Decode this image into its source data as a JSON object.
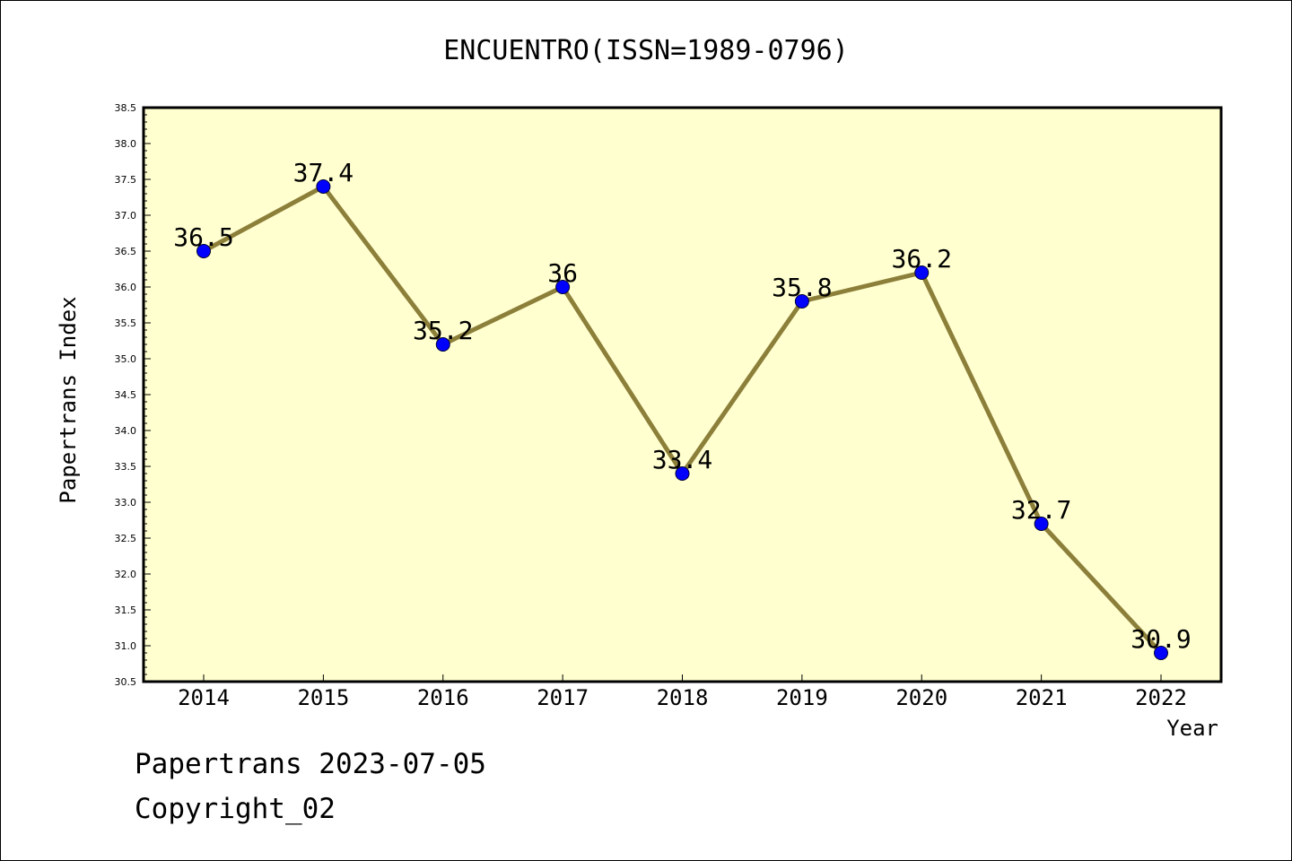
{
  "chart_data": {
    "type": "line",
    "title": "ENCUENTRO(ISSN=1989-0796)",
    "xlabel": "Year",
    "ylabel": "Papertrans Index",
    "x": [
      "2014",
      "2015",
      "2016",
      "2017",
      "2018",
      "2019",
      "2020",
      "2021",
      "2022"
    ],
    "series": [
      {
        "values": [
          36.5,
          37.4,
          35.2,
          36.0,
          33.4,
          35.8,
          36.2,
          32.7,
          30.9
        ],
        "labels": [
          "36.5",
          "37.4",
          "35.2",
          "36",
          "33.4",
          "35.8",
          "36.2",
          "32.7",
          "30.9"
        ]
      }
    ],
    "ylim": [
      30.5,
      38.5
    ],
    "yticks": [
      "30.5",
      "31.0",
      "31.5",
      "32.0",
      "32.5",
      "33.0",
      "33.5",
      "34.0",
      "34.5",
      "35.0",
      "35.5",
      "36.0",
      "36.5",
      "37.0",
      "37.5",
      "38.0",
      "38.5"
    ],
    "grid": false,
    "colors": {
      "plot_background": "#ffffd0",
      "line": "#8c7f3a",
      "marker": "#0000ff"
    }
  },
  "footer": {
    "line1": "Papertrans 2023-07-05",
    "line2": "Copyright_02"
  }
}
